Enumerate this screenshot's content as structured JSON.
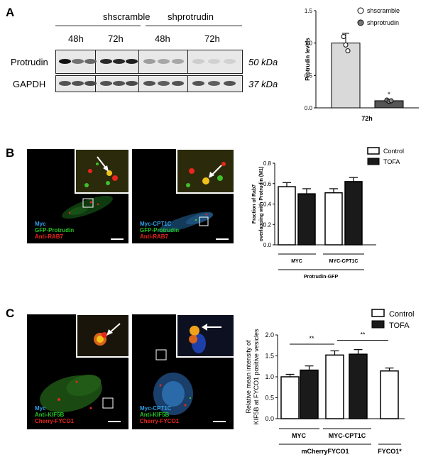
{
  "panels": {
    "a": {
      "label": "A",
      "group1": "shscramble",
      "group2": "shprotrudin",
      "times": [
        "48h",
        "72h",
        "48h",
        "72h"
      ],
      "row1_label": "Protrudin",
      "row2_label": "GAPDH",
      "row1_kda": "50 kDa",
      "row2_kda": "37 kDa",
      "band_intensity_protrudin": [
        1.0,
        0.55,
        0.6,
        0.9,
        0.9,
        0.95,
        0.35,
        0.3,
        0.3,
        0.12,
        0.1,
        0.1
      ],
      "band_intensity_gapdh": [
        0.7,
        0.7,
        0.75,
        0.7,
        0.7,
        0.75,
        0.7,
        0.65,
        0.7,
        0.7,
        0.65,
        0.7
      ]
    },
    "b": {
      "label": "B",
      "left_legend": [
        "Myc",
        "GFP-Protrudin",
        "Anti-RAB7"
      ],
      "right_legend": [
        "Myc-CPT1C",
        "GFP-Protrudin",
        "Anti-RAB7"
      ]
    },
    "c": {
      "label": "C",
      "left_legend": [
        "Myc",
        "Anti-KIF5B",
        "Cherry-FYCO1"
      ],
      "right_legend": [
        "Myc-CPT1C",
        "Anti-KIF5B",
        "Cherry-FYCO1"
      ]
    }
  },
  "colors": {
    "myc": "#2ea0e6",
    "green": "#22c322",
    "red": "#e8261d",
    "bar_light": "#d9d9d9",
    "bar_dark": "#555555",
    "bar_black": "#1a1a1a"
  },
  "chart_data": [
    {
      "type": "bar",
      "categories": [
        "72h"
      ],
      "series": [
        {
          "name": "shscramble",
          "values": [
            1.0
          ],
          "error": [
            0.15
          ],
          "points": [
            1.1,
            0.97,
            0.88
          ]
        },
        {
          "name": "shprotrudin",
          "values": [
            0.11
          ],
          "error": [
            0.02
          ],
          "points": [
            0.12,
            0.1,
            0.11
          ]
        }
      ],
      "ylabel": "Protrudin levels",
      "xlabel": "72h",
      "ylim": [
        0,
        1.5
      ],
      "yticks": [
        "0.0",
        "0.5",
        "1.0",
        "1.5"
      ],
      "annotations": [
        "*"
      ],
      "legend": "top-right"
    },
    {
      "type": "bar",
      "categories": [
        "MYC",
        "MYC-CPT1C"
      ],
      "series": [
        {
          "name": "Control",
          "values": [
            0.57,
            0.51
          ],
          "error": [
            0.04,
            0.04
          ]
        },
        {
          "name": "TOFA",
          "values": [
            0.5,
            0.62
          ],
          "error": [
            0.05,
            0.04
          ]
        }
      ],
      "ylabel_line1": "Fraction of Rab7",
      "ylabel_line2": "overlapping with Protrudin (M1)",
      "group_label": "Protrudin-GFP",
      "ylim": [
        0,
        0.8
      ],
      "yticks": [
        "0.0",
        "0.2",
        "0.4",
        "0.6",
        "0.8"
      ],
      "legend": "top-right"
    },
    {
      "type": "bar",
      "categories": [
        "MYC",
        "MYC-CPT1C",
        "FYCO1*"
      ],
      "series": [
        {
          "name": "Control",
          "values": [
            1.0,
            1.52,
            1.14
          ],
          "error": [
            0.06,
            0.1,
            0.07
          ]
        },
        {
          "name": "TOFA",
          "values": [
            1.16,
            1.54,
            null
          ],
          "error": [
            0.1,
            0.11,
            null
          ]
        }
      ],
      "ylabel_line1": "Relative mean intensity of",
      "ylabel_line2": "KIF5B at FYCO1 positive vesicles",
      "group_label": "mCherryFYCO1",
      "third_label": "FYCO1*",
      "ylim": [
        0,
        2.0
      ],
      "yticks": [
        "0.0",
        "0.5",
        "1.0",
        "1.5",
        "2.0"
      ],
      "annotations": [
        "**",
        "**"
      ],
      "legend": "top-right"
    }
  ]
}
